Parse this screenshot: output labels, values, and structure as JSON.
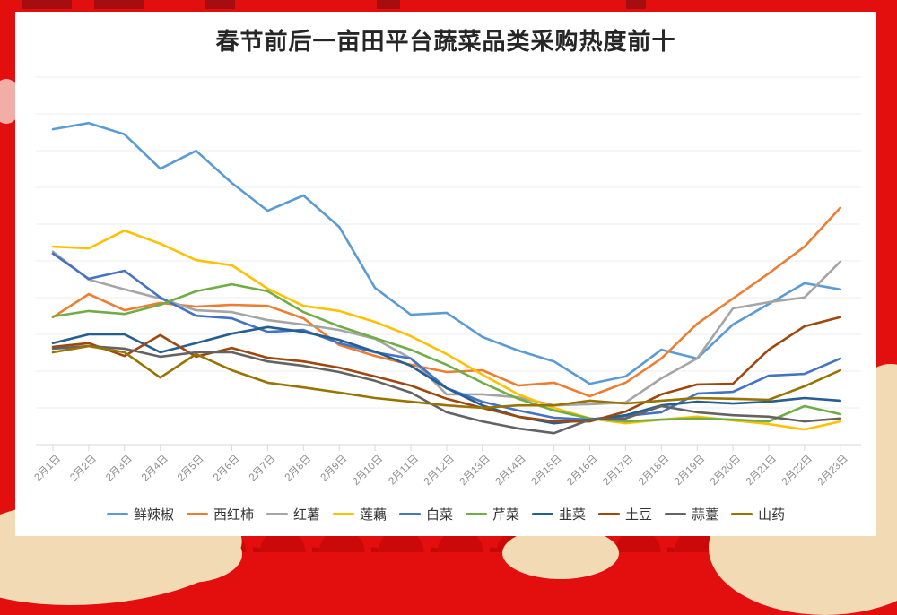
{
  "title": "春节前后一亩田平台蔬菜品类采购热度前十",
  "theme": {
    "background_red": "#E30E0E",
    "dark_red": "#A50D10",
    "scallop_red": "#CC0909",
    "cream": "#F2DBB4",
    "card_white": "#FFFFFF",
    "grid_gray": "#EDEDED",
    "axis_gray": "#D9D9D9",
    "tick_label_gray": "#8C8C8C"
  },
  "chart_data": {
    "type": "line",
    "title": "春节前后一亩田平台蔬菜品类采购热度前十",
    "xlabel": "",
    "ylabel": "",
    "y_axis_labels_visible": false,
    "ylim": [
      0,
      100
    ],
    "grid": true,
    "legend_position": "bottom",
    "x_categories": [
      "2月1日",
      "2月2日",
      "2月3日",
      "2月4日",
      "2月5日",
      "2月6日",
      "2月7日",
      "2月8日",
      "2月9日",
      "2月10日",
      "2月11日",
      "2月12日",
      "2月13日",
      "2月14日",
      "2月15日",
      "2月16日",
      "2月17日",
      "2月18日",
      "2月19日",
      "2月20日",
      "2月21日",
      "2月22日",
      "2月23日"
    ],
    "value_note": "relative purchase-heat index 0-100, estimated from pixel positions (no numeric y axis shown)",
    "series": [
      {
        "name": "鲜辣椒",
        "color": "#5B9BD5",
        "values": [
          86.0,
          87.7,
          84.6,
          75.2,
          80.1,
          71.3,
          63.7,
          67.9,
          59.3,
          42.6,
          35.3,
          35.8,
          29.2,
          25.5,
          22.5,
          16.4,
          18.4,
          25.7,
          23.3,
          32.6,
          38.2,
          43.9,
          42.2
        ]
      },
      {
        "name": "西红柿",
        "color": "#ED7D31",
        "values": [
          34.6,
          40.9,
          36.5,
          38.5,
          37.5,
          38.0,
          37.7,
          34.3,
          27.0,
          24.0,
          21.6,
          19.6,
          20.1,
          15.9,
          16.7,
          13.0,
          16.7,
          23.3,
          32.8,
          39.7,
          46.6,
          53.9,
          64.5
        ]
      },
      {
        "name": "红薯",
        "color": "#A5A5A5",
        "values": [
          52.5,
          44.9,
          42.2,
          39.7,
          36.5,
          36.0,
          33.8,
          32.6,
          31.1,
          28.7,
          23.3,
          13.5,
          13.5,
          12.7,
          10.5,
          10.8,
          11.3,
          17.9,
          23.3,
          37.0,
          38.7,
          40.0,
          49.8
        ]
      },
      {
        "name": "莲藕",
        "color": "#FFC000",
        "values": [
          53.9,
          53.4,
          58.3,
          54.7,
          50.2,
          48.8,
          42.4,
          37.7,
          36.3,
          33.3,
          29.4,
          24.5,
          18.9,
          13.5,
          9.8,
          6.9,
          5.6,
          6.6,
          7.4,
          6.4,
          5.4,
          3.9,
          6.1
        ]
      },
      {
        "name": "白菜",
        "color": "#4472C4",
        "values": [
          52.0,
          45.1,
          47.3,
          40.0,
          35.0,
          34.3,
          30.6,
          31.1,
          27.5,
          25.0,
          23.3,
          15.2,
          11.5,
          9.1,
          7.1,
          6.6,
          7.6,
          8.6,
          13.7,
          14.2,
          18.6,
          19.1,
          23.3
        ]
      },
      {
        "name": "芹菜",
        "color": "#70AD47",
        "values": [
          34.8,
          36.3,
          35.5,
          38.0,
          41.7,
          43.6,
          41.7,
          36.0,
          32.1,
          28.9,
          25.7,
          21.6,
          16.7,
          12.3,
          9.1,
          6.9,
          6.1,
          6.6,
          6.9,
          6.6,
          6.1,
          10.3,
          8.1
        ]
      },
      {
        "name": "韭菜",
        "color": "#255E91",
        "values": [
          27.5,
          29.9,
          29.9,
          25.0,
          27.5,
          30.1,
          31.9,
          30.6,
          28.4,
          25.2,
          21.3,
          15.2,
          10.5,
          7.4,
          5.6,
          6.6,
          7.8,
          10.5,
          11.5,
          11.0,
          11.5,
          12.5,
          11.8
        ]
      },
      {
        "name": "土豆",
        "color": "#9E480E",
        "values": [
          26.5,
          27.5,
          24.0,
          29.7,
          23.8,
          26.2,
          23.5,
          22.5,
          20.8,
          18.4,
          15.9,
          12.3,
          9.8,
          7.4,
          6.1,
          6.1,
          8.8,
          13.5,
          16.2,
          16.4,
          25.7,
          32.1,
          34.6
        ]
      },
      {
        "name": "蒜薹",
        "color": "#636363",
        "values": [
          26.0,
          26.7,
          26.0,
          23.8,
          25.0,
          25.0,
          22.5,
          21.3,
          19.6,
          17.2,
          14.0,
          8.6,
          6.1,
          4.2,
          2.9,
          6.6,
          6.9,
          10.3,
          8.6,
          7.8,
          7.4,
          6.1,
          6.9
        ]
      },
      {
        "name": "山药",
        "color": "#997300",
        "values": [
          25.0,
          26.7,
          25.0,
          18.1,
          24.5,
          20.1,
          16.7,
          15.4,
          14.0,
          12.5,
          11.5,
          10.5,
          9.8,
          10.5,
          10.5,
          11.8,
          11.0,
          11.8,
          12.5,
          12.3,
          12.0,
          15.7,
          20.1
        ]
      }
    ]
  }
}
